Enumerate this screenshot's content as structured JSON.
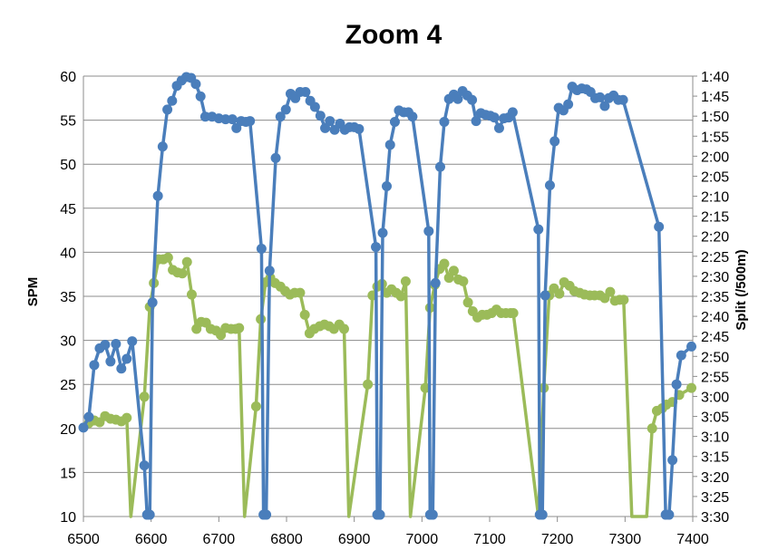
{
  "chart_data": {
    "type": "line",
    "title": "Zoom 4",
    "xlabel": "",
    "ylabel": "SPM",
    "y2label": "Split (/500m)",
    "xlim": [
      6500,
      7400
    ],
    "ylim": [
      10,
      60
    ],
    "xticks": [
      6500,
      6600,
      6700,
      6800,
      6900,
      7000,
      7100,
      7200,
      7300,
      7400
    ],
    "yticks": [
      10,
      15,
      20,
      25,
      30,
      35,
      40,
      45,
      50,
      55,
      60
    ],
    "y2ticks": [
      "1:40",
      "1:45",
      "1:50",
      "1:55",
      "2:00",
      "2:05",
      "2:10",
      "2:15",
      "2:20",
      "2:25",
      "2:30",
      "2:35",
      "2:40",
      "2:45",
      "2:50",
      "2:55",
      "3:00",
      "3:05",
      "3:10",
      "3:15",
      "3:20",
      "3:25",
      "3:30"
    ],
    "grid": "horizontal",
    "series": [
      {
        "axis": "left",
        "color": "#4a7ebb",
        "points": [
          [
            6500,
            20.1
          ],
          [
            6508,
            21.3
          ],
          [
            6516,
            27.2
          ],
          [
            6524,
            29.1
          ],
          [
            6532,
            29.5
          ],
          [
            6540,
            27.6
          ],
          [
            6548,
            29.6
          ],
          [
            6556,
            26.8
          ],
          [
            6564,
            27.9
          ],
          [
            6572,
            29.9
          ],
          [
            6590,
            15.8
          ],
          [
            6594,
            10.2
          ],
          [
            6598,
            10.2
          ],
          [
            6602,
            34.3
          ],
          [
            6610,
            46.4
          ],
          [
            6617,
            52
          ],
          [
            6624,
            56.2
          ],
          [
            6631,
            57.2
          ],
          [
            6638,
            58.9
          ],
          [
            6645,
            59.5
          ],
          [
            6652,
            59.9
          ],
          [
            6659,
            59.8
          ],
          [
            6666,
            59.1
          ],
          [
            6673,
            57.7
          ],
          [
            6680,
            55.4
          ],
          [
            6690,
            55.4
          ],
          [
            6700,
            55.2
          ],
          [
            6710,
            55.1
          ],
          [
            6720,
            55.1
          ],
          [
            6726,
            54.1
          ],
          [
            6733,
            54.9
          ],
          [
            6740,
            54.8
          ],
          [
            6746,
            54.9
          ],
          [
            6763,
            40.4
          ],
          [
            6766,
            10.2
          ],
          [
            6770,
            10.2
          ],
          [
            6775,
            37.9
          ],
          [
            6784,
            50.7
          ],
          [
            6791,
            55.4
          ],
          [
            6799,
            56.2
          ],
          [
            6806,
            58
          ],
          [
            6813,
            57.5
          ],
          [
            6820,
            58.2
          ],
          [
            6828,
            58.2
          ],
          [
            6835,
            57.2
          ],
          [
            6842,
            56.5
          ],
          [
            6850,
            55.5
          ],
          [
            6857,
            54.1
          ],
          [
            6864,
            54.9
          ],
          [
            6871,
            53.9
          ],
          [
            6879,
            54.6
          ],
          [
            6886,
            53.9
          ],
          [
            6893,
            54.2
          ],
          [
            6900,
            54.2
          ],
          [
            6907,
            54
          ],
          [
            6932,
            40.6
          ],
          [
            6934,
            10.2
          ],
          [
            6938,
            10.2
          ],
          [
            6942,
            42.2
          ],
          [
            6948,
            47.5
          ],
          [
            6953,
            52.2
          ],
          [
            6960,
            54.8
          ],
          [
            6966,
            56.1
          ],
          [
            6973,
            55.9
          ],
          [
            6980,
            55.9
          ],
          [
            6986,
            55.4
          ],
          [
            7010,
            42.4
          ],
          [
            7012,
            10.2
          ],
          [
            7016,
            10.2
          ],
          [
            7020,
            36.5
          ],
          [
            7027,
            49.7
          ],
          [
            7033,
            54.8
          ],
          [
            7040,
            57.4
          ],
          [
            7047,
            57.9
          ],
          [
            7053,
            57.4
          ],
          [
            7060,
            58.3
          ],
          [
            7067,
            57.8
          ],
          [
            7074,
            57.3
          ],
          [
            7080,
            54.9
          ],
          [
            7087,
            55.8
          ],
          [
            7094,
            55.6
          ],
          [
            7101,
            55.5
          ],
          [
            7107,
            55.3
          ],
          [
            7114,
            54.1
          ],
          [
            7121,
            55.2
          ],
          [
            7128,
            55.3
          ],
          [
            7134,
            55.9
          ],
          [
            7172,
            42.6
          ],
          [
            7174,
            10.2
          ],
          [
            7178,
            10.2
          ],
          [
            7182,
            35.1
          ],
          [
            7189,
            47.6
          ],
          [
            7196,
            52.6
          ],
          [
            7202,
            56.4
          ],
          [
            7209,
            56.1
          ],
          [
            7216,
            56.8
          ],
          [
            7222,
            58.8
          ],
          [
            7229,
            58.4
          ],
          [
            7236,
            58.6
          ],
          [
            7243,
            58.5
          ],
          [
            7249,
            58.2
          ],
          [
            7256,
            57.5
          ],
          [
            7263,
            57.6
          ],
          [
            7270,
            56.6
          ],
          [
            7276,
            57.5
          ],
          [
            7283,
            57.8
          ],
          [
            7290,
            57.3
          ],
          [
            7297,
            57.3
          ],
          [
            7350,
            42.9
          ],
          [
            7360,
            10.2
          ],
          [
            7365,
            10.2
          ],
          [
            7370,
            16.4
          ],
          [
            7376,
            25
          ],
          [
            7383,
            28.3
          ],
          [
            7398,
            29.3
          ]
        ]
      },
      {
        "axis": "right",
        "color": "#9bbb59",
        "points": [
          [
            6508,
            20.6
          ],
          [
            6516,
            20.9
          ],
          [
            6524,
            20.7
          ],
          [
            6532,
            21.4
          ],
          [
            6540,
            21.1
          ],
          [
            6548,
            21
          ],
          [
            6556,
            20.8
          ],
          [
            6564,
            21.2
          ],
          [
            6570,
            10
          ],
          [
            6590,
            23.6
          ],
          [
            6598,
            33.8
          ],
          [
            6604,
            36.5
          ],
          [
            6611,
            39.2
          ],
          [
            6618,
            39.2
          ],
          [
            6625,
            39.4
          ],
          [
            6632,
            38
          ],
          [
            6639,
            37.7
          ],
          [
            6646,
            37.6
          ],
          [
            6653,
            38.9
          ],
          [
            6660,
            35.2
          ],
          [
            6667,
            31.3
          ],
          [
            6674,
            32.1
          ],
          [
            6681,
            32
          ],
          [
            6688,
            31.3
          ],
          [
            6696,
            31.1
          ],
          [
            6703,
            30.6
          ],
          [
            6710,
            31.4
          ],
          [
            6718,
            31.3
          ],
          [
            6725,
            31.3
          ],
          [
            6730,
            31.4
          ],
          [
            6738,
            10
          ],
          [
            6755,
            22.5
          ],
          [
            6762,
            32.4
          ],
          [
            6769,
            36.6
          ],
          [
            6776,
            37.1
          ],
          [
            6783,
            36.5
          ],
          [
            6791,
            36.1
          ],
          [
            6798,
            35.6
          ],
          [
            6805,
            35.2
          ],
          [
            6812,
            35.4
          ],
          [
            6820,
            35.4
          ],
          [
            6827,
            32.9
          ],
          [
            6834,
            30.8
          ],
          [
            6841,
            31.3
          ],
          [
            6849,
            31.6
          ],
          [
            6856,
            31.8
          ],
          [
            6863,
            31.6
          ],
          [
            6870,
            31.3
          ],
          [
            6878,
            31.8
          ],
          [
            6885,
            31.3
          ],
          [
            6892,
            10
          ],
          [
            6920,
            25
          ],
          [
            6927,
            35.1
          ],
          [
            6934,
            36.1
          ],
          [
            6941,
            36.4
          ],
          [
            6948,
            35.4
          ],
          [
            6955,
            35.8
          ],
          [
            6962,
            35.4
          ],
          [
            6969,
            35
          ],
          [
            6976,
            36.7
          ],
          [
            6983,
            10
          ],
          [
            7005,
            24.6
          ],
          [
            7012,
            33.7
          ],
          [
            7019,
            36.3
          ],
          [
            7026,
            38.1
          ],
          [
            7033,
            38.7
          ],
          [
            7040,
            37.1
          ],
          [
            7047,
            37.9
          ],
          [
            7054,
            36.9
          ],
          [
            7061,
            36.7
          ],
          [
            7068,
            34.3
          ],
          [
            7075,
            33.3
          ],
          [
            7082,
            32.6
          ],
          [
            7089,
            32.9
          ],
          [
            7096,
            32.9
          ],
          [
            7103,
            33.1
          ],
          [
            7110,
            33.5
          ],
          [
            7117,
            33.1
          ],
          [
            7124,
            33.1
          ],
          [
            7131,
            33.1
          ],
          [
            7135,
            33.1
          ],
          [
            7172,
            10
          ],
          [
            7180,
            24.6
          ],
          [
            7188,
            35.1
          ],
          [
            7195,
            35.9
          ],
          [
            7203,
            35.3
          ],
          [
            7210,
            36.6
          ],
          [
            7218,
            36.2
          ],
          [
            7225,
            35.6
          ],
          [
            7233,
            35.4
          ],
          [
            7240,
            35.2
          ],
          [
            7248,
            35.1
          ],
          [
            7255,
            35.1
          ],
          [
            7263,
            35.1
          ],
          [
            7270,
            34.8
          ],
          [
            7278,
            35.5
          ],
          [
            7285,
            34.5
          ],
          [
            7292,
            34.6
          ],
          [
            7298,
            34.6
          ],
          [
            7310,
            10
          ],
          [
            7332,
            10
          ],
          [
            7340,
            20
          ],
          [
            7347,
            22
          ],
          [
            7355,
            22.3
          ],
          [
            7361,
            22.7
          ],
          [
            7370,
            23
          ],
          [
            7380,
            23.8
          ],
          [
            7398,
            24.6
          ]
        ]
      }
    ]
  }
}
